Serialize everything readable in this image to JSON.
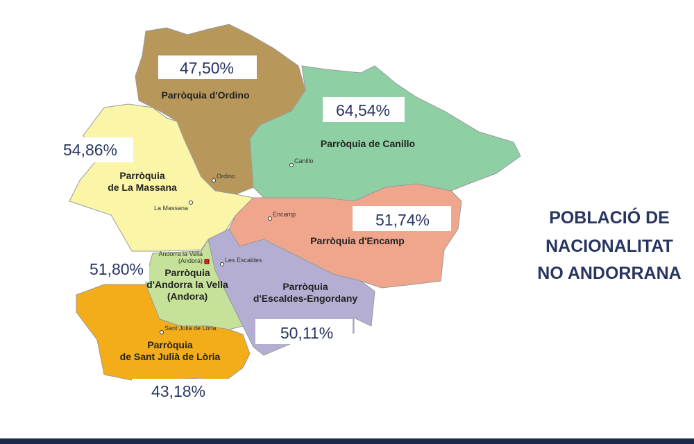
{
  "title": [
    "POBLACIÓ DE",
    "NACIONALITAT",
    "NO ANDORRANA"
  ],
  "parishes": [
    {
      "name": [
        "Parròquia d'Ordino"
      ],
      "town": [
        "Ordino"
      ],
      "share": "47,50%"
    },
    {
      "name": [
        "Parròquia de Canillo"
      ],
      "town": [
        "Canillo"
      ],
      "share": "64,54%"
    },
    {
      "name": [
        "Parròquia",
        "de La Massana"
      ],
      "town": [
        "La Massana"
      ],
      "share": "54,86%"
    },
    {
      "name": [
        "Parròquia d'Encamp"
      ],
      "town": [
        "Encamp"
      ],
      "share": "51,74%"
    },
    {
      "name": [
        "Parròquia",
        "d'Andorra la Vella",
        "(Andora)"
      ],
      "town": [
        "Andorra la Vella",
        "(Andora)"
      ],
      "share": "51,80%"
    },
    {
      "name": [
        "Parròquia",
        "d'Escaldes-Engordany"
      ],
      "town": [
        "Les Escaldes"
      ],
      "share": "50,11%"
    },
    {
      "name": [
        "Parròquia",
        "de Sant Julià de Lòria"
      ],
      "town": [
        "Sant Julià de Lòria"
      ],
      "share": "43,18%"
    }
  ]
}
